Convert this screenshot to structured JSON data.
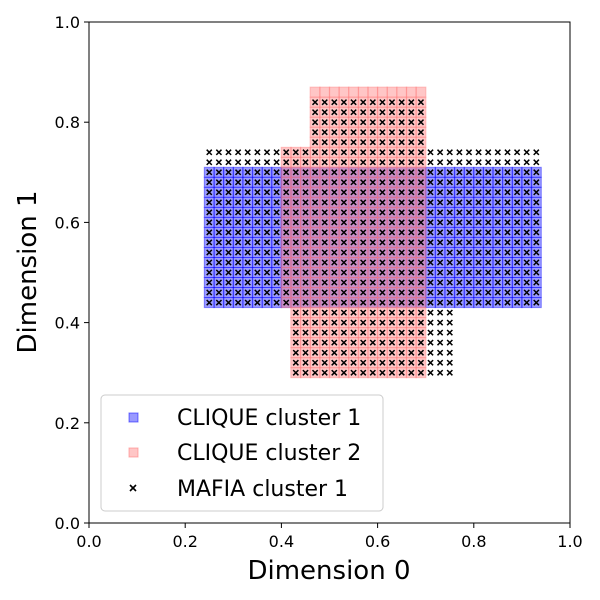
{
  "chart_data": {
    "type": "scatter",
    "title": "",
    "xlabel": "Dimension 0",
    "ylabel": "Dimension 1",
    "xlim": [
      0.0,
      1.0
    ],
    "ylim": [
      0.0,
      1.0
    ],
    "xticks": [
      "0.0",
      "0.2",
      "0.4",
      "0.6",
      "0.8",
      "1.0"
    ],
    "yticks": [
      "0.0",
      "0.2",
      "0.4",
      "0.6",
      "0.8",
      "1.0"
    ],
    "grid": false,
    "legend_position": "lower-left",
    "grid_step": 0.02,
    "series": [
      {
        "name": "CLIQUE cluster 1",
        "marker": "square",
        "color": "#0000ff",
        "alpha": 0.4,
        "regions": [
          {
            "x": [
              0.25,
              0.92
            ],
            "y": [
              0.44,
              0.7
            ]
          }
        ]
      },
      {
        "name": "CLIQUE cluster 2",
        "marker": "square",
        "color": "#ff8080",
        "alpha": 0.45,
        "regions": [
          {
            "x": [
              0.47,
              0.69
            ],
            "y": [
              0.76,
              0.86
            ]
          },
          {
            "x": [
              0.41,
              0.7
            ],
            "y": [
              0.44,
              0.74
            ]
          },
          {
            "x": [
              0.43,
              0.7
            ],
            "y": [
              0.3,
              0.42
            ]
          }
        ]
      },
      {
        "name": "MAFIA cluster 1",
        "marker": "x",
        "color": "#000000",
        "regions": [
          {
            "x": [
              0.47,
              0.7
            ],
            "y": [
              0.76,
              0.84
            ]
          },
          {
            "x": [
              0.25,
              0.92
            ],
            "y": [
              0.44,
              0.74
            ]
          },
          {
            "x": [
              0.43,
              0.75
            ],
            "y": [
              0.3,
              0.42
            ]
          }
        ]
      }
    ]
  }
}
